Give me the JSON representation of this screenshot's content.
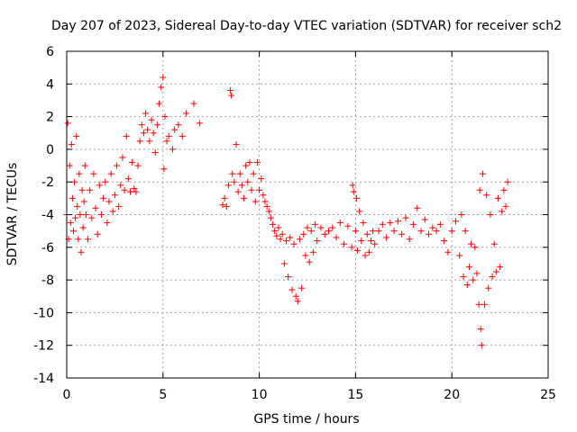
{
  "chart_data": {
    "type": "scatter",
    "title": "Day 207 of 2023, Sidereal Day-to-day VTEC variation (SDTVAR) for receiver sch2",
    "xlabel": "GPS time / hours",
    "ylabel": "SDTVAR / TECUs",
    "xlim": [
      0,
      25
    ],
    "ylim": [
      -14,
      6
    ],
    "xticks": [
      0,
      5,
      10,
      15,
      20,
      25
    ],
    "yticks": [
      -14,
      -12,
      -10,
      -8,
      -6,
      -4,
      -2,
      0,
      2,
      4,
      6
    ],
    "grid": true,
    "marker": "+",
    "color": "#ff0000",
    "series": [
      {
        "name": "sch2",
        "points": [
          [
            0.0,
            -4.0
          ],
          [
            0.05,
            1.6
          ],
          [
            0.1,
            -5.5
          ],
          [
            0.15,
            -1.0
          ],
          [
            0.2,
            -4.5
          ],
          [
            0.25,
            0.3
          ],
          [
            0.3,
            -3.0
          ],
          [
            0.35,
            -5.0
          ],
          [
            0.4,
            -2.0
          ],
          [
            0.45,
            -4.2
          ],
          [
            0.5,
            0.8
          ],
          [
            0.55,
            -3.5
          ],
          [
            0.6,
            -5.5
          ],
          [
            0.65,
            -1.5
          ],
          [
            0.7,
            -4.0
          ],
          [
            0.75,
            -6.3
          ],
          [
            0.8,
            -2.5
          ],
          [
            0.85,
            -4.8
          ],
          [
            0.9,
            -3.2
          ],
          [
            0.95,
            -1.0
          ],
          [
            1.0,
            -4.0
          ],
          [
            1.1,
            -5.5
          ],
          [
            1.2,
            -2.5
          ],
          [
            1.3,
            -4.2
          ],
          [
            1.4,
            -1.5
          ],
          [
            1.5,
            -3.6
          ],
          [
            1.6,
            -5.2
          ],
          [
            1.7,
            -2.2
          ],
          [
            1.8,
            -4.0
          ],
          [
            1.9,
            -3.0
          ],
          [
            2.0,
            -2.0
          ],
          [
            2.1,
            -4.5
          ],
          [
            2.2,
            -3.2
          ],
          [
            2.3,
            -1.5
          ],
          [
            2.4,
            -3.8
          ],
          [
            2.5,
            -2.8
          ],
          [
            2.6,
            -1.0
          ],
          [
            2.7,
            -3.5
          ],
          [
            2.8,
            -2.2
          ],
          [
            2.9,
            -0.5
          ],
          [
            3.0,
            -2.5
          ],
          [
            3.1,
            0.8
          ],
          [
            3.2,
            -1.8
          ],
          [
            3.3,
            -2.6
          ],
          [
            3.4,
            -0.8
          ],
          [
            3.5,
            -2.4
          ],
          [
            3.6,
            -2.6
          ],
          [
            3.7,
            -1.0
          ],
          [
            3.8,
            0.5
          ],
          [
            3.9,
            1.5
          ],
          [
            4.0,
            1.0
          ],
          [
            4.1,
            2.2
          ],
          [
            4.2,
            1.2
          ],
          [
            4.3,
            0.5
          ],
          [
            4.4,
            1.8
          ],
          [
            4.5,
            1.0
          ],
          [
            4.6,
            -0.2
          ],
          [
            4.7,
            1.5
          ],
          [
            4.8,
            2.8
          ],
          [
            4.9,
            3.8
          ],
          [
            5.0,
            4.4
          ],
          [
            5.05,
            -1.2
          ],
          [
            5.1,
            2.0
          ],
          [
            5.2,
            0.5
          ],
          [
            5.3,
            0.8
          ],
          [
            5.5,
            0.0
          ],
          [
            5.6,
            1.2
          ],
          [
            5.8,
            1.5
          ],
          [
            6.0,
            0.8
          ],
          [
            6.2,
            2.2
          ],
          [
            6.6,
            2.8
          ],
          [
            6.9,
            1.6
          ],
          [
            8.1,
            -3.4
          ],
          [
            8.2,
            -3.0
          ],
          [
            8.3,
            -3.5
          ],
          [
            8.4,
            -2.2
          ],
          [
            8.5,
            3.6
          ],
          [
            8.55,
            3.3
          ],
          [
            8.6,
            -1.5
          ],
          [
            8.7,
            -2.0
          ],
          [
            8.8,
            0.3
          ],
          [
            8.9,
            -2.6
          ],
          [
            9.0,
            -1.5
          ],
          [
            9.1,
            -2.2
          ],
          [
            9.2,
            -3.0
          ],
          [
            9.3,
            -1.0
          ],
          [
            9.4,
            -2.0
          ],
          [
            9.5,
            -0.8
          ],
          [
            9.6,
            -2.5
          ],
          [
            9.7,
            -1.5
          ],
          [
            9.8,
            -3.2
          ],
          [
            9.9,
            -0.8
          ],
          [
            10.0,
            -2.5
          ],
          [
            10.1,
            -1.8
          ],
          [
            10.2,
            -2.8
          ],
          [
            10.3,
            -3.2
          ],
          [
            10.4,
            -3.5
          ],
          [
            10.5,
            -3.8
          ],
          [
            10.6,
            -4.2
          ],
          [
            10.7,
            -4.6
          ],
          [
            10.8,
            -5.0
          ],
          [
            10.9,
            -5.3
          ],
          [
            11.0,
            -4.8
          ],
          [
            11.1,
            -5.5
          ],
          [
            11.2,
            -5.2
          ],
          [
            11.3,
            -7.0
          ],
          [
            11.4,
            -5.6
          ],
          [
            11.5,
            -7.8
          ],
          [
            11.6,
            -5.4
          ],
          [
            11.7,
            -8.6
          ],
          [
            11.8,
            -5.8
          ],
          [
            11.9,
            -9.0
          ],
          [
            12.0,
            -9.3
          ],
          [
            12.1,
            -5.5
          ],
          [
            12.2,
            -8.5
          ],
          [
            12.3,
            -5.2
          ],
          [
            12.4,
            -6.5
          ],
          [
            12.5,
            -4.8
          ],
          [
            12.6,
            -6.9
          ],
          [
            12.7,
            -5.0
          ],
          [
            12.8,
            -6.3
          ],
          [
            12.9,
            -4.6
          ],
          [
            13.0,
            -5.6
          ],
          [
            13.2,
            -4.8
          ],
          [
            13.4,
            -5.2
          ],
          [
            13.6,
            -5.0
          ],
          [
            13.8,
            -4.8
          ],
          [
            14.0,
            -5.4
          ],
          [
            14.2,
            -4.5
          ],
          [
            14.4,
            -5.8
          ],
          [
            14.6,
            -4.7
          ],
          [
            14.8,
            -6.0
          ],
          [
            14.85,
            -2.2
          ],
          [
            14.9,
            -2.6
          ],
          [
            15.0,
            -5.0
          ],
          [
            15.05,
            -3.0
          ],
          [
            15.1,
            -6.2
          ],
          [
            15.2,
            -3.8
          ],
          [
            15.3,
            -5.6
          ],
          [
            15.4,
            -4.5
          ],
          [
            15.5,
            -6.5
          ],
          [
            15.6,
            -5.2
          ],
          [
            15.7,
            -6.3
          ],
          [
            15.8,
            -5.6
          ],
          [
            15.9,
            -5.0
          ],
          [
            16.0,
            -5.8
          ],
          [
            16.2,
            -5.0
          ],
          [
            16.4,
            -4.6
          ],
          [
            16.6,
            -5.4
          ],
          [
            16.8,
            -4.5
          ],
          [
            17.0,
            -5.0
          ],
          [
            17.2,
            -4.4
          ],
          [
            17.4,
            -5.2
          ],
          [
            17.6,
            -4.2
          ],
          [
            17.8,
            -5.5
          ],
          [
            18.0,
            -4.6
          ],
          [
            18.2,
            -3.6
          ],
          [
            18.4,
            -5.0
          ],
          [
            18.6,
            -4.3
          ],
          [
            18.8,
            -5.2
          ],
          [
            19.0,
            -4.8
          ],
          [
            19.2,
            -5.0
          ],
          [
            19.4,
            -4.6
          ],
          [
            19.6,
            -5.6
          ],
          [
            19.8,
            -6.3
          ],
          [
            20.0,
            -5.0
          ],
          [
            20.2,
            -4.4
          ],
          [
            20.4,
            -6.5
          ],
          [
            20.5,
            -4.0
          ],
          [
            20.6,
            -7.8
          ],
          [
            20.7,
            -5.0
          ],
          [
            20.8,
            -8.3
          ],
          [
            20.9,
            -7.2
          ],
          [
            21.0,
            -5.8
          ],
          [
            21.1,
            -8.0
          ],
          [
            21.2,
            -6.0
          ],
          [
            21.3,
            -7.6
          ],
          [
            21.4,
            -9.5
          ],
          [
            21.45,
            -2.5
          ],
          [
            21.5,
            -11.0
          ],
          [
            21.55,
            -12.0
          ],
          [
            21.6,
            -1.5
          ],
          [
            21.7,
            -9.5
          ],
          [
            21.8,
            -2.8
          ],
          [
            21.9,
            -8.5
          ],
          [
            22.0,
            -4.0
          ],
          [
            22.1,
            -7.8
          ],
          [
            22.2,
            -5.8
          ],
          [
            22.3,
            -7.5
          ],
          [
            22.4,
            -3.0
          ],
          [
            22.5,
            -7.2
          ],
          [
            22.6,
            -3.8
          ],
          [
            22.7,
            -2.5
          ],
          [
            22.8,
            -3.5
          ],
          [
            22.9,
            -2.0
          ]
        ]
      }
    ]
  }
}
